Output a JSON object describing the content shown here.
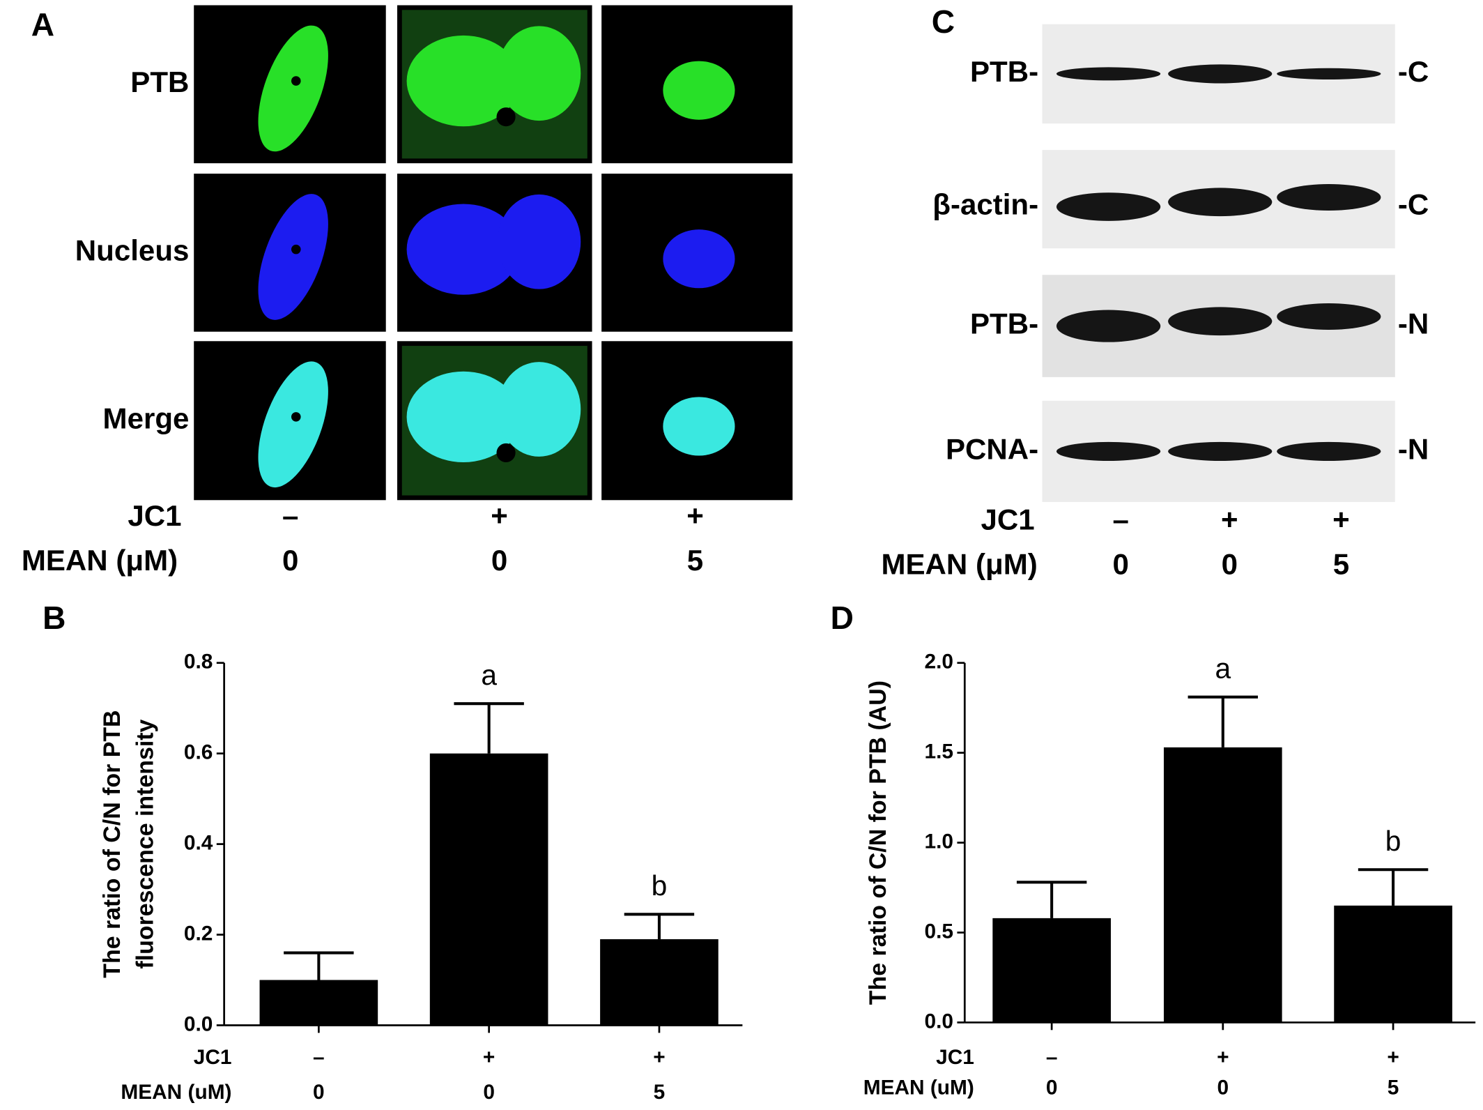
{
  "panel_a": {
    "label": "A",
    "rows": [
      "PTB",
      "Nucleus",
      "Merge"
    ],
    "jc1_label": "JC1",
    "jc1": [
      "–",
      "+",
      "+"
    ],
    "mean_label": "MEAN (μM)",
    "mean": [
      0,
      0,
      5
    ]
  },
  "panel_c": {
    "label": "C",
    "bands": [
      {
        "name": "PTB-",
        "fraction": "-C"
      },
      {
        "name": "β-actin-",
        "fraction": "-C"
      },
      {
        "name": "PTB-",
        "fraction": "-N"
      },
      {
        "name": "PCNA-",
        "fraction": "-N"
      }
    ],
    "jc1_label": "JC1",
    "jc1": [
      "–",
      "+",
      "+"
    ],
    "mean_label": "MEAN (μM)",
    "mean": [
      0,
      0,
      5
    ]
  },
  "chart_data": [
    {
      "type": "bar",
      "panel": "B",
      "ylabel": [
        "The ratio of C/N for PTB",
        "fluorescence intensity"
      ],
      "categories": [
        "–",
        "+",
        "+"
      ],
      "category_label": "JC1",
      "mean_label": "MEAN (uM)",
      "mean": [
        0,
        0,
        5
      ],
      "values": [
        0.1,
        0.6,
        0.19
      ],
      "errors": [
        0.06,
        0.11,
        0.055
      ],
      "letters": [
        null,
        "a",
        "b"
      ],
      "color": "#000000",
      "ylim": [
        0,
        0.8
      ],
      "yticks": [
        {
          "value": 0,
          "label": "0.0"
        },
        {
          "value": 0.2,
          "label": "0.2"
        },
        {
          "value": 0.4,
          "label": "0.4"
        },
        {
          "value": 0.6,
          "label": "0.6"
        },
        {
          "value": 0.8,
          "label": "0.8"
        }
      ]
    },
    {
      "type": "bar",
      "panel": "D",
      "ylabel": [
        "The ratio of C/N for PTB (AU)"
      ],
      "categories": [
        "–",
        "+",
        "+"
      ],
      "category_label": "JC1",
      "mean_label": "MEAN (uM)",
      "mean": [
        0,
        0,
        5
      ],
      "values": [
        0.58,
        1.53,
        0.65
      ],
      "errors": [
        0.2,
        0.28,
        0.2
      ],
      "letters": [
        null,
        "a",
        "b"
      ],
      "color": "#000000",
      "ylim": [
        0,
        2
      ],
      "yticks": [
        {
          "value": 0,
          "label": "0.0"
        },
        {
          "value": 0.5,
          "label": "0.5"
        },
        {
          "value": 1,
          "label": "1.0"
        },
        {
          "value": 1.5,
          "label": "1.5"
        },
        {
          "value": 2,
          "label": "2.0"
        }
      ]
    }
  ]
}
